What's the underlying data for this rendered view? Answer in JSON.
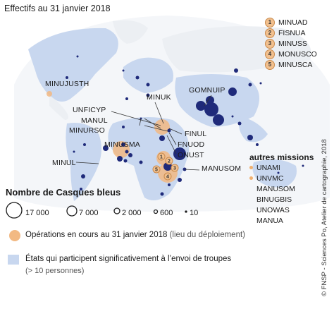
{
  "title": "Effectifs au 31 janvier 2018",
  "colors": {
    "ocean": "#ffffff",
    "land": "#eceff3",
    "contributor": "#c8d7ef",
    "troops": "#1f2a7a",
    "operation": "#f2b983",
    "border": "#ffffff"
  },
  "numbered_missions": [
    {
      "n": "1",
      "name": "MINUAD"
    },
    {
      "n": "2",
      "name": "FISNUA"
    },
    {
      "n": "3",
      "name": "MINUSS"
    },
    {
      "n": "4",
      "name": "MONUSCO"
    },
    {
      "n": "5",
      "name": "MINUSCA"
    }
  ],
  "map_labels": {
    "minujusth": "MINUJUSTH",
    "minuk": "MINUK",
    "gomnuip": "GOMNUIP",
    "unficyp": "UNFICYP",
    "manul": "MANUL",
    "minurso": "MINURSO",
    "finul": "FINUL",
    "fnuod": "FNUOD",
    "minusma": "MINUSMA",
    "onust": "ONUST",
    "minul": "MINUL",
    "manusom": "MANUSOM"
  },
  "other_missions": {
    "heading": "autres missions",
    "items": [
      {
        "name": "UNAMI",
        "dot": true
      },
      {
        "name": "UNVMC",
        "dot": true
      },
      {
        "name": "MANUSOM",
        "dot": false
      },
      {
        "name": "BINUGBIS",
        "dot": false
      },
      {
        "name": "UNOWAS",
        "dot": false
      },
      {
        "name": "MANUA",
        "dot": false
      }
    ]
  },
  "legend": {
    "size_heading": "Nombre de Casques bleus",
    "sizes": [
      {
        "value": 17000,
        "label": "17 000"
      },
      {
        "value": 7000,
        "label": "7 000"
      },
      {
        "value": 2000,
        "label": "2 000"
      },
      {
        "value": 600,
        "label": "600"
      },
      {
        "value": 10,
        "label": "10"
      }
    ],
    "operations_label": "Opérations en cours au 31 janvier 2018",
    "operations_note": "(lieu du déploiement)",
    "contributors_label": "États qui participent significativement à l’envoi de troupes",
    "contributors_note": "(> 10 personnes)"
  },
  "credit": "© FNSP - Sciences Po, Atelier de cartographie, 2018"
}
